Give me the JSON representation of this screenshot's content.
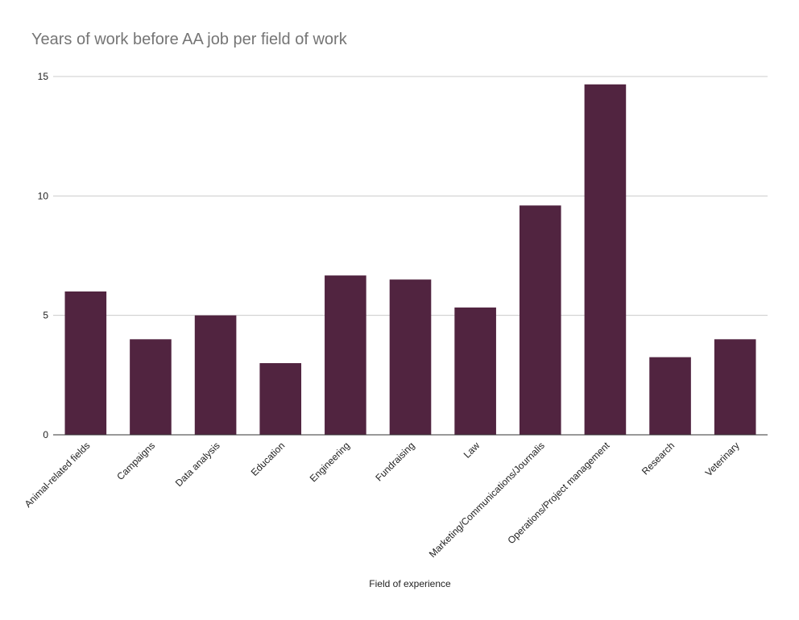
{
  "chart_data": {
    "type": "bar",
    "title": "Years of work before AA job per field of work",
    "xlabel": "Field of experience",
    "ylabel": "",
    "ylim": [
      0,
      15
    ],
    "yticks": [
      "0",
      "5",
      "10",
      "15"
    ],
    "grid": true,
    "legend": "none",
    "bar_color": "#512440",
    "categories": [
      "Animal-related fields",
      "Campaigns",
      "Data analysis",
      "Education",
      "Engineering",
      "Fundraising",
      "Law",
      "Marketing/Communications/Journalis",
      "Operations/Project management",
      "Research",
      "Veterinary"
    ],
    "values": [
      6,
      4,
      5,
      3,
      6.67,
      6.5,
      5.33,
      9.6,
      14.67,
      3.25,
      4
    ]
  }
}
